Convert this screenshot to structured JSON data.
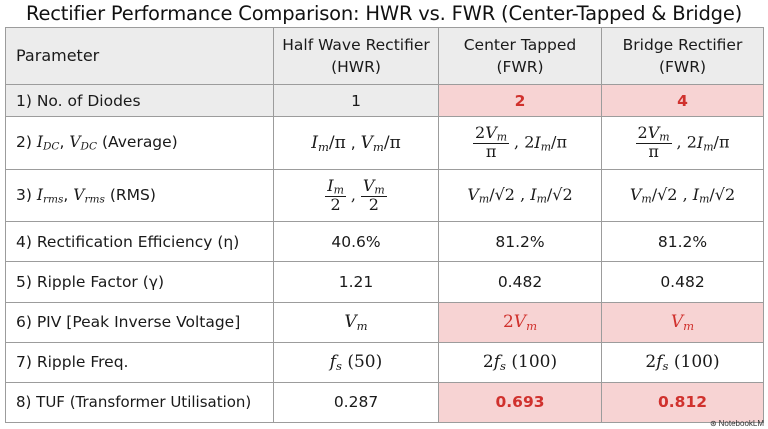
{
  "title": "Rectifier Performance Comparison: HWR vs. FWR (Center-Tapped & Bridge)",
  "headers": {
    "parameter": "Parameter",
    "hwr": "Half Wave Rectifier (HWR)",
    "ct": "Center Tapped (FWR)",
    "bridge": "Bridge Rectifier (FWR)"
  },
  "rows": [
    {
      "label": "1) No. of Diodes",
      "hwr": "1",
      "ct": "2",
      "bridge": "4"
    },
    {
      "label_prefix": "2) ",
      "label_suffix": " (Average)",
      "hwr": "Im/π, Vm/π",
      "ct": "2Vm/π, 2Im/π",
      "bridge": "2Vm/π, 2Im/π"
    },
    {
      "label_prefix": "3) ",
      "label_suffix": " (RMS)",
      "hwr": "Im/2, Vm/2",
      "ct": "Vm/√2, Im/√2",
      "bridge": "Vm/√2, Im/√2"
    },
    {
      "label": "4) Rectification Efficiency (η)",
      "hwr": "40.6%",
      "ct": "81.2%",
      "bridge": "81.2%"
    },
    {
      "label": "5) Ripple Factor (γ)",
      "hwr": "1.21",
      "ct": "0.482",
      "bridge": "0.482"
    },
    {
      "label": "6) PIV [Peak Inverse Voltage]",
      "hwr": "Vm",
      "ct": "2Vm",
      "bridge": "Vm"
    },
    {
      "label": "7) Ripple Freq.",
      "hwr": "fs (50)",
      "ct": "2fs (100)",
      "bridge": "2fs (100)"
    },
    {
      "label": "8) TUF (Transformer Utilisation)",
      "hwr": "0.287",
      "ct": "0.693",
      "bridge": "0.812"
    }
  ],
  "watermark": "NotebookLM",
  "colors": {
    "highlight_bg": "#f7d3d3",
    "highlight_text": "#d0312d",
    "header_bg": "#ececec",
    "border": "#9c9c9c"
  }
}
